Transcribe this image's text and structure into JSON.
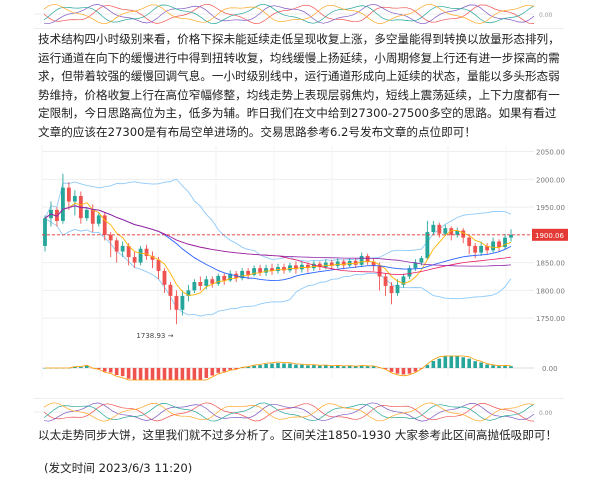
{
  "article": {
    "paragraph": "技术结构四小时级别来看，价格下探未能延续走低呈现收复上涨，多空量能得到转换以放量形态排列，运行通道在向下的缓慢进行中得到扭转收复，均线缓慢上扬延续，小周期修复上行还有进一步探高的需求，但带着较强的缓慢回调气息。一小时级别线中，运行通道形成向上延续的状态，量能以多头形态弱势维持，价格收复上行在高位窄幅修整，均线走势上表现层弱焦灼，短线上震荡延续，上下力度都有一定限制，今日思路高位为主，低多为辅。昨日我们在文中给到27300-27500多空的思路。如果有看过文章的应该在27300是有布局空单进场的。交易思路参考6.2号发布文章的点位即可！",
    "footer_text": "以太走势同步大饼，这里我们就不过多分析了。区间关注1850-1930 大家参考此区间高抛低吸即可！",
    "publish_time": "(发文时间  2023/6/3  11:20)"
  },
  "colors": {
    "up": "#26a69a",
    "down": "#ef5350",
    "price_tag": "#e53935",
    "ma_blue": "#2962ff",
    "ma_orange": "#ff9800",
    "grid": "#eeeeee"
  },
  "chart_data": {
    "type": "candlestick",
    "y_ticks": [
      "2050.00",
      "2000.00",
      "1950.00",
      "1900.00",
      "1850.00",
      "1800.00",
      "1750.00"
    ],
    "ylim": [
      1725,
      2060
    ],
    "current_price": "1900.06",
    "low_label": "1738.93",
    "oscillator_ticks": [
      "0.00",
      "0.00",
      "0.00"
    ],
    "candles": [
      [
        1880,
        1930,
        1870,
        1935
      ],
      [
        1930,
        1945,
        1915,
        1960
      ],
      [
        1945,
        1925,
        1915,
        1950
      ],
      [
        1925,
        1985,
        1920,
        2010
      ],
      [
        1985,
        1960,
        1945,
        1995
      ],
      [
        1960,
        1970,
        1935,
        1980
      ],
      [
        1970,
        1930,
        1920,
        1978
      ],
      [
        1930,
        1945,
        1925,
        1950
      ],
      [
        1945,
        1920,
        1905,
        1955
      ],
      [
        1920,
        1935,
        1915,
        1940
      ],
      [
        1935,
        1900,
        1890,
        1940
      ],
      [
        1900,
        1890,
        1860,
        1905
      ],
      [
        1890,
        1870,
        1850,
        1895
      ],
      [
        1870,
        1880,
        1860,
        1888
      ],
      [
        1880,
        1860,
        1845,
        1885
      ],
      [
        1860,
        1850,
        1840,
        1870
      ],
      [
        1850,
        1875,
        1845,
        1880
      ],
      [
        1875,
        1862,
        1855,
        1882
      ],
      [
        1862,
        1855,
        1840,
        1870
      ],
      [
        1855,
        1835,
        1820,
        1860
      ],
      [
        1835,
        1810,
        1795,
        1840
      ],
      [
        1810,
        1790,
        1765,
        1815
      ],
      [
        1790,
        1765,
        1739,
        1800
      ],
      [
        1765,
        1790,
        1755,
        1800
      ],
      [
        1790,
        1800,
        1780,
        1810
      ],
      [
        1800,
        1815,
        1795,
        1820
      ],
      [
        1815,
        1808,
        1800,
        1825
      ],
      [
        1808,
        1820,
        1802,
        1826
      ],
      [
        1820,
        1812,
        1805,
        1825
      ],
      [
        1812,
        1826,
        1808,
        1830
      ],
      [
        1826,
        1818,
        1810,
        1832
      ],
      [
        1818,
        1830,
        1815,
        1836
      ],
      [
        1830,
        1822,
        1815,
        1835
      ],
      [
        1822,
        1835,
        1818,
        1840
      ],
      [
        1835,
        1828,
        1820,
        1840
      ],
      [
        1828,
        1840,
        1825,
        1845
      ],
      [
        1840,
        1832,
        1826,
        1846
      ],
      [
        1832,
        1840,
        1826,
        1846
      ],
      [
        1840,
        1835,
        1828,
        1848
      ],
      [
        1835,
        1842,
        1830,
        1848
      ],
      [
        1842,
        1836,
        1830,
        1848
      ],
      [
        1836,
        1845,
        1832,
        1850
      ],
      [
        1845,
        1838,
        1830,
        1852
      ],
      [
        1838,
        1846,
        1832,
        1852
      ],
      [
        1846,
        1840,
        1832,
        1850
      ],
      [
        1840,
        1848,
        1835,
        1853
      ],
      [
        1848,
        1842,
        1836,
        1852
      ],
      [
        1842,
        1850,
        1838,
        1856
      ],
      [
        1850,
        1844,
        1838,
        1855
      ],
      [
        1844,
        1852,
        1840,
        1858
      ],
      [
        1852,
        1845,
        1838,
        1856
      ],
      [
        1845,
        1853,
        1842,
        1858
      ],
      [
        1853,
        1846,
        1840,
        1858
      ],
      [
        1846,
        1862,
        1842,
        1868
      ],
      [
        1862,
        1852,
        1846,
        1866
      ],
      [
        1852,
        1845,
        1835,
        1858
      ],
      [
        1845,
        1825,
        1800,
        1850
      ],
      [
        1825,
        1808,
        1790,
        1830
      ],
      [
        1808,
        1795,
        1775,
        1815
      ],
      [
        1795,
        1810,
        1790,
        1820
      ],
      [
        1810,
        1825,
        1805,
        1830
      ],
      [
        1825,
        1840,
        1820,
        1845
      ],
      [
        1840,
        1850,
        1835,
        1856
      ],
      [
        1850,
        1858,
        1845,
        1862
      ],
      [
        1858,
        1905,
        1855,
        1925
      ],
      [
        1905,
        1918,
        1900,
        1925
      ],
      [
        1918,
        1902,
        1895,
        1922
      ],
      [
        1902,
        1912,
        1898,
        1918
      ],
      [
        1912,
        1900,
        1890,
        1915
      ],
      [
        1900,
        1908,
        1895,
        1913
      ],
      [
        1908,
        1895,
        1885,
        1912
      ],
      [
        1895,
        1880,
        1865,
        1900
      ],
      [
        1880,
        1868,
        1858,
        1885
      ],
      [
        1868,
        1880,
        1862,
        1888
      ],
      [
        1880,
        1872,
        1865,
        1885
      ],
      [
        1872,
        1888,
        1868,
        1895
      ],
      [
        1888,
        1878,
        1870,
        1892
      ],
      [
        1878,
        1895,
        1874,
        1902
      ],
      [
        1895,
        1900,
        1888,
        1910
      ]
    ]
  }
}
